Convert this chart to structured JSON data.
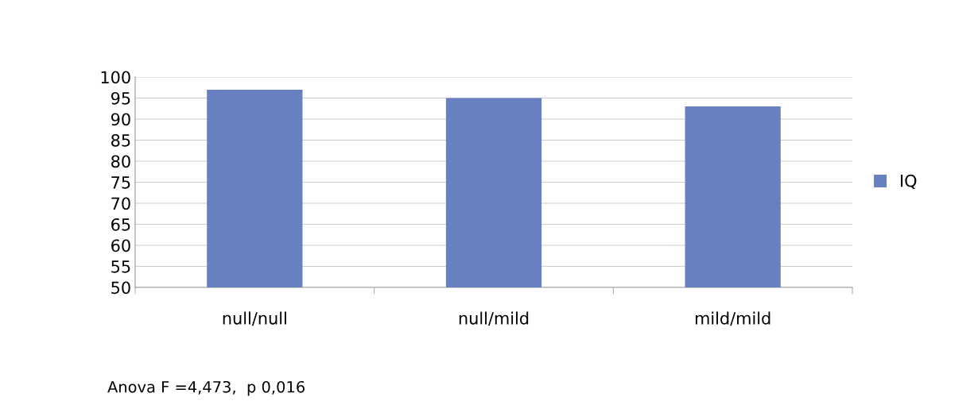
{
  "chart_data": {
    "type": "bar",
    "categories": [
      "null/null",
      "null/mild",
      "mild/mild"
    ],
    "series": [
      {
        "name": "IQ",
        "color": "#6780c0",
        "values": [
          97,
          95,
          93
        ]
      }
    ],
    "ylim": [
      50,
      100
    ],
    "yticks": [
      50,
      55,
      60,
      65,
      70,
      75,
      80,
      85,
      90,
      95,
      100
    ],
    "grid": "y",
    "legend": "right",
    "annotations": [
      "Anova F =4,473,  p 0,016"
    ]
  }
}
